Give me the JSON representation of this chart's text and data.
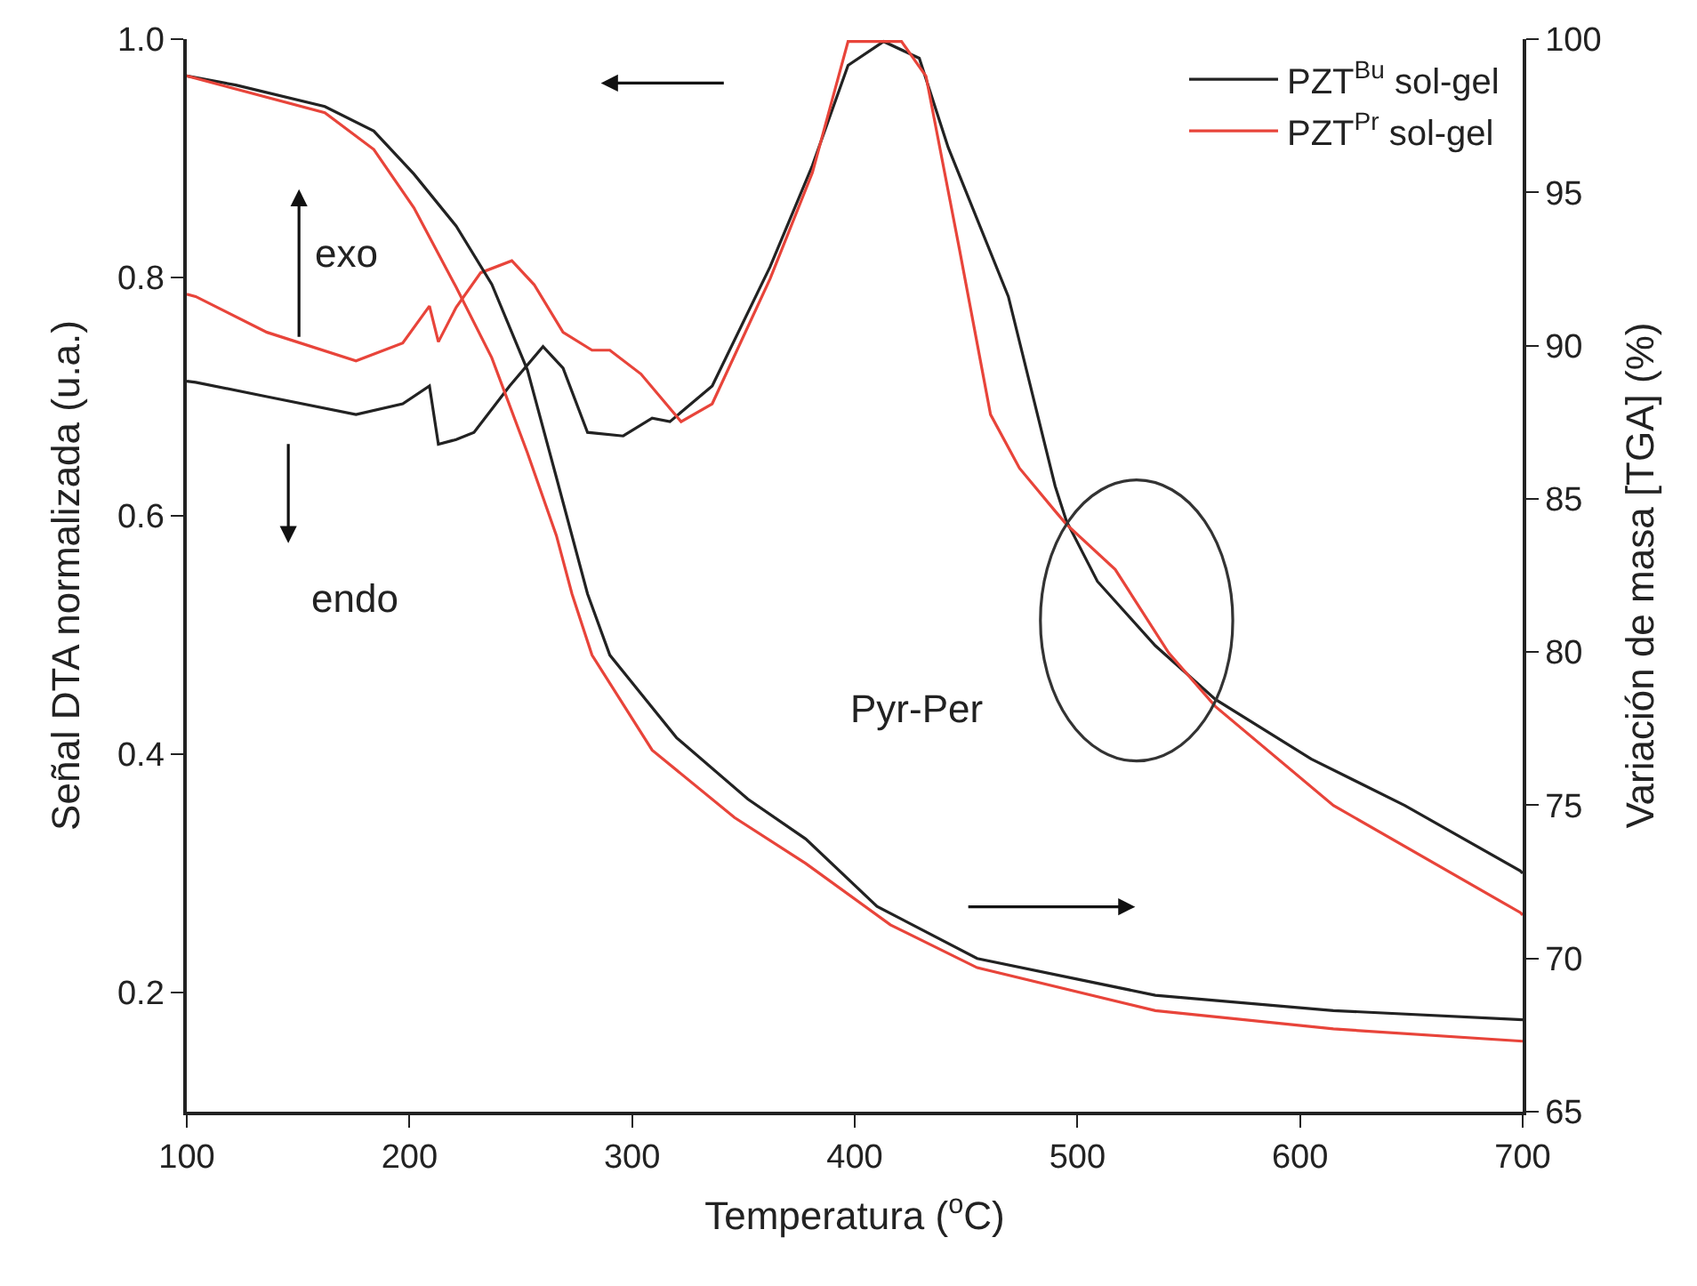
{
  "chart_data": {
    "type": "line",
    "xlabel": "Temperatura ($^{o}$C)",
    "ylabel": "Señal DTA normalizada (u.a.)",
    "y2label": "Variación de masa [TGA] (%)",
    "xlim": [
      100,
      700
    ],
    "xticks": [
      100,
      200,
      300,
      400,
      500,
      600,
      700
    ],
    "ylim": [
      0.1,
      1.0
    ],
    "yticks": [
      0.2,
      0.4,
      0.6,
      0.8,
      {
        "value": 1,
        "label": "1.0"
      }
    ],
    "y2lim": [
      65,
      100
    ],
    "y2ticks": [
      65,
      70,
      75,
      80,
      85,
      90,
      95,
      100
    ],
    "legend": "top right",
    "line_style": "solid",
    "marker": "none",
    "annotations": [
      "exo",
      "endo",
      "Pyr-Per"
    ],
    "series": [
      {
        "name": "PZT$^{Bu}$ sol-gel",
        "color": "#222222",
        "x": [
          100,
          104,
          136,
          176,
          197,
          209,
          213,
          221,
          229,
          245,
          260,
          269,
          280,
          296,
          309,
          317,
          336,
          362,
          381,
          397,
          413,
          429,
          442,
          469,
          490,
          495,
          509,
          535,
          562,
          605,
          647,
          699,
          700
        ],
        "values": [
          0.713,
          0.712,
          0.7,
          0.685,
          0.694,
          0.709,
          0.66,
          0.664,
          0.67,
          0.709,
          0.742,
          0.724,
          0.67,
          0.667,
          0.682,
          0.679,
          0.709,
          0.809,
          0.894,
          0.978,
          0.998,
          0.984,
          0.909,
          0.784,
          0.625,
          0.596,
          0.545,
          0.491,
          0.446,
          0.396,
          0.357,
          0.302,
          0.3
        ]
      },
      {
        "name": "PZT$^{Pr}$ sol-gel",
        "color": "#e8443a",
        "x": [
          100,
          104,
          136,
          176,
          197,
          209,
          213,
          221,
          232,
          246,
          256,
          269,
          282,
          290,
          304,
          322,
          336,
          362,
          381,
          397,
          421,
          432,
          447,
          461,
          474,
          490,
          495,
          517,
          541,
          562,
          615,
          699,
          700
        ],
        "values": [
          0.786,
          0.784,
          0.754,
          0.73,
          0.745,
          0.776,
          0.746,
          0.775,
          0.804,
          0.814,
          0.794,
          0.754,
          0.739,
          0.739,
          0.719,
          0.679,
          0.694,
          0.799,
          0.888,
          0.998,
          0.998,
          0.969,
          0.824,
          0.685,
          0.64,
          0.604,
          0.593,
          0.555,
          0.485,
          0.44,
          0.357,
          0.267,
          0.265
        ]
      },
      {
        "color": "#222222",
        "axis": "y2",
        "x": [
          100,
          122,
          162,
          184,
          202,
          221,
          237,
          253,
          266,
          280,
          290,
          320,
          352,
          378,
          410,
          455,
          535,
          615,
          700
        ],
        "values": [
          98.8,
          98.5,
          97.8,
          97.0,
          95.6,
          93.9,
          92.0,
          89.2,
          85.7,
          81.9,
          79.9,
          77.2,
          75.2,
          73.9,
          71.7,
          70.0,
          68.8,
          68.3,
          68.0
        ]
      },
      {
        "color": "#e8443a",
        "axis": "y2",
        "x": [
          100,
          162,
          184,
          202,
          221,
          237,
          253,
          266,
          273,
          282,
          309,
          346,
          378,
          416,
          455,
          535,
          615,
          700
        ],
        "values": [
          98.8,
          97.6,
          96.4,
          94.5,
          91.9,
          89.6,
          86.5,
          83.8,
          81.9,
          79.9,
          76.8,
          74.6,
          73.1,
          71.1,
          69.7,
          68.3,
          67.7,
          67.3
        ]
      }
    ]
  }
}
